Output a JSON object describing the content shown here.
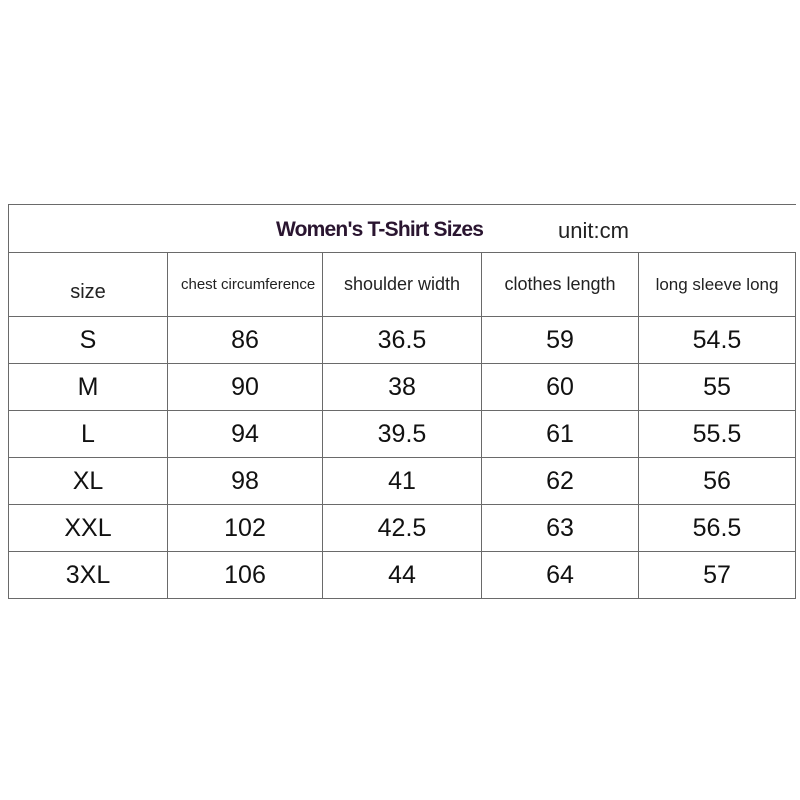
{
  "title": "Women's T-Shirt Sizes",
  "unit": "unit:cm",
  "columns": [
    "size",
    "chest circumference",
    "shoulder width",
    "clothes length",
    "long sleeve long"
  ],
  "rows": [
    [
      "S",
      "86",
      "36.5",
      "59",
      "54.5"
    ],
    [
      "M",
      "90",
      "38",
      "60",
      "55"
    ],
    [
      "L",
      "94",
      "39.5",
      "61",
      "55.5"
    ],
    [
      "XL",
      "98",
      "41",
      "62",
      "56"
    ],
    [
      "XXL",
      "102",
      "42.5",
      "63",
      "56.5"
    ],
    [
      "3XL",
      "106",
      "44",
      "64",
      "57"
    ]
  ]
}
